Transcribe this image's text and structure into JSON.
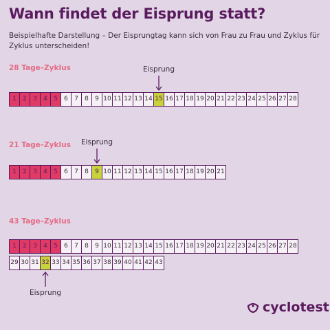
{
  "title": "Wann findet der Eisprung statt?",
  "subtitle": "Beispielhafte Darstellung – Der Eisprungtag kann sich von Frau zu Frau und Zyklus für Zyklus unterscheiden!",
  "ovulation_label": "Eisprung",
  "cycles": [
    {
      "label": "28 Tage–Zyklus",
      "rows": [
        [
          1,
          2,
          3,
          4,
          5,
          6,
          7,
          8,
          9,
          10,
          11,
          12,
          13,
          14,
          15,
          16,
          17,
          18,
          19,
          20,
          21,
          22,
          23,
          24,
          25,
          26,
          27,
          28
        ]
      ],
      "period_days": [
        1,
        2,
        3,
        4,
        5
      ],
      "ovulation_day": 15
    },
    {
      "label": "21 Tage–Zyklus",
      "rows": [
        [
          1,
          2,
          3,
          4,
          5,
          6,
          7,
          8,
          9,
          10,
          11,
          12,
          13,
          14,
          15,
          16,
          17,
          18,
          19,
          20,
          21
        ]
      ],
      "period_days": [
        1,
        2,
        3,
        4,
        5
      ],
      "ovulation_day": 9
    },
    {
      "label": "43 Tage–Zyklus",
      "rows": [
        [
          1,
          2,
          3,
          4,
          5,
          6,
          7,
          8,
          9,
          10,
          11,
          12,
          13,
          14,
          15,
          16,
          17,
          18,
          19,
          20,
          21,
          22,
          23,
          24,
          25,
          26,
          27,
          28
        ],
        [
          29,
          30,
          31,
          32,
          33,
          34,
          35,
          36,
          37,
          38,
          39,
          40,
          41,
          42,
          43
        ]
      ],
      "period_days": [
        1,
        2,
        3,
        4,
        5
      ],
      "ovulation_day": 32
    }
  ],
  "logo": {
    "text": "cyclotest",
    "icon": "cyclotest-logo-icon"
  },
  "colors": {
    "background": "#e2d6e6",
    "period": "#e03a66",
    "ovulation": "#c6d33a",
    "cycle_label": "#e46a86",
    "brand": "#5a1a5e"
  }
}
